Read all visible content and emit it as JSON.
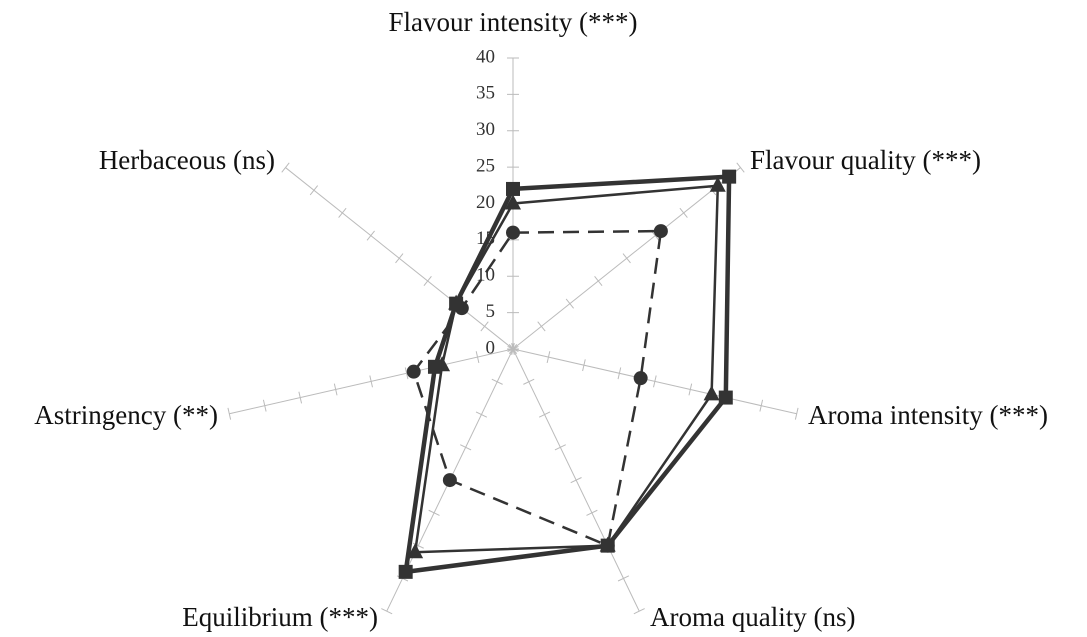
{
  "chart_data": {
    "type": "radar",
    "categories": [
      "Flavour intensity (***)",
      "Flavour quality (***)",
      "Aroma intensity (***)",
      "Aroma quality (ns)",
      "Equilibrium (***)",
      "Astringency (**)",
      "Herbaceous (ns)"
    ],
    "series": [
      {
        "color": "#333333",
        "marker": "square",
        "dash": false,
        "width": 4.5,
        "values": [
          22,
          38,
          30,
          30,
          34,
          11,
          10
        ]
      },
      {
        "color": "#333333",
        "marker": "triangle",
        "dash": false,
        "width": 2.5,
        "values": [
          20,
          36,
          28,
          30,
          31,
          10,
          10
        ]
      },
      {
        "color": "#333333",
        "marker": "circle",
        "dash": true,
        "width": 2.5,
        "values": [
          16,
          26,
          18,
          30,
          20,
          14,
          9
        ]
      }
    ],
    "ylim": [
      0,
      40
    ],
    "yticks": [
      0,
      5,
      10,
      15,
      20,
      25,
      30,
      35,
      40
    ],
    "grid": true
  }
}
